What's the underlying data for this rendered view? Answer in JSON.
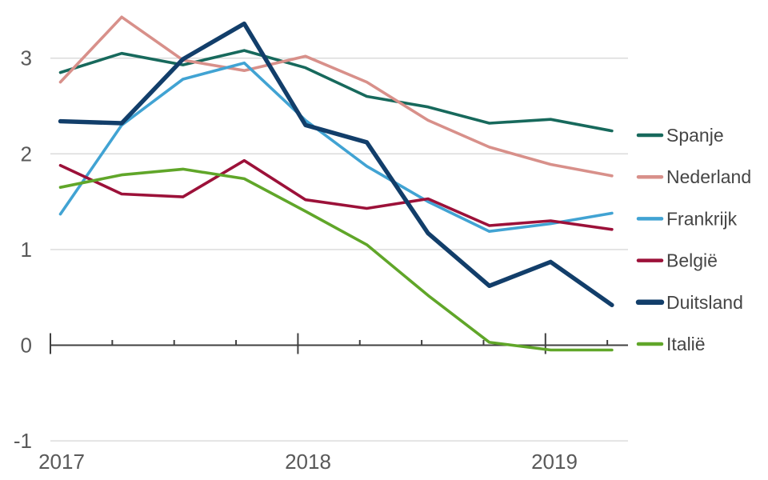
{
  "chart_data": {
    "type": "line",
    "title": "",
    "x_labels": [
      "2017",
      "2018",
      "2019"
    ],
    "x_quarters": [
      "2017Q1",
      "2017Q2",
      "2017Q3",
      "2017Q4",
      "2018Q1",
      "2018Q2",
      "2018Q3",
      "2018Q4",
      "2019Q1",
      "2019Q2"
    ],
    "y_ticks": [
      "3",
      "2",
      "1",
      "0",
      "-1"
    ],
    "ylim": [
      -1.4,
      3.6
    ],
    "grid": "horizontal",
    "legend_position": "right",
    "axis_color": "#404040",
    "gridline_color": "#d9d9d9",
    "series": [
      {
        "name": "Spanje",
        "color": "#17695c",
        "thick": false,
        "values": [
          2.85,
          3.05,
          2.93,
          3.08,
          2.9,
          2.6,
          2.49,
          2.32,
          2.36,
          2.24
        ]
      },
      {
        "name": "Nederland",
        "color": "#d8908a",
        "thick": false,
        "values": [
          2.75,
          3.43,
          2.98,
          2.87,
          3.02,
          2.75,
          2.35,
          2.07,
          1.89,
          1.77
        ]
      },
      {
        "name": "Frankrijk",
        "color": "#41a3d3",
        "thick": false,
        "values": [
          1.37,
          2.3,
          2.78,
          2.95,
          2.35,
          1.87,
          1.5,
          1.19,
          1.27,
          1.38
        ]
      },
      {
        "name": "België",
        "color": "#9c1139",
        "thick": false,
        "values": [
          1.88,
          1.58,
          1.55,
          1.93,
          1.52,
          1.43,
          1.53,
          1.25,
          1.3,
          1.21
        ]
      },
      {
        "name": "Duitsland",
        "color": "#123e6a",
        "thick": true,
        "values": [
          2.34,
          2.32,
          2.99,
          3.36,
          2.3,
          2.12,
          1.17,
          0.62,
          0.87,
          0.42
        ]
      },
      {
        "name": "Italië",
        "color": "#60a629",
        "thick": false,
        "values": [
          1.65,
          1.78,
          1.84,
          1.74,
          1.4,
          1.05,
          0.52,
          0.03,
          -0.05,
          -0.05
        ]
      }
    ]
  }
}
